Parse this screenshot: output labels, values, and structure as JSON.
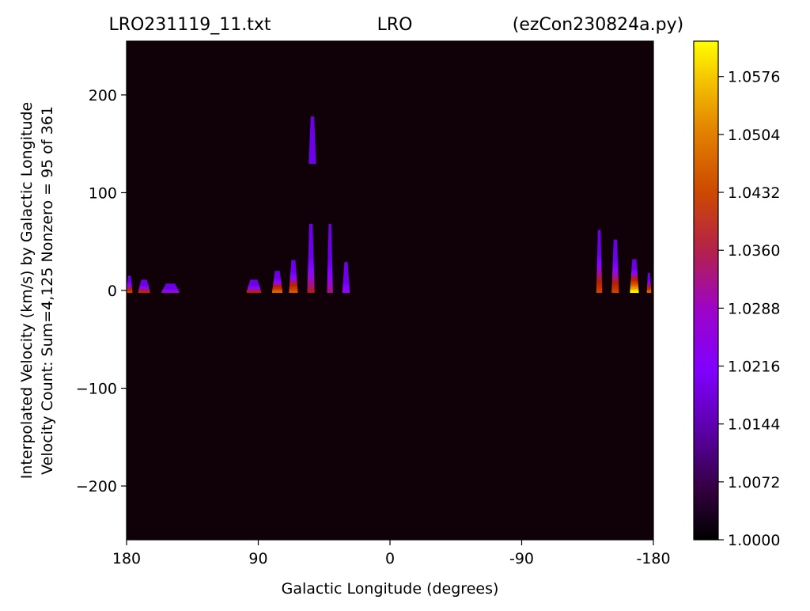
{
  "title": {
    "left": "LRO231119_11.txt",
    "center": "LRO",
    "right": "(ezCon230824a.py)"
  },
  "chart_data": {
    "type": "heatmap",
    "xlabel": "Galactic Longitude (degrees)",
    "ylabel_line1": "Interpolated Velocity (km/s) by Galactic Longitude",
    "ylabel_line2": "Velocity Count: Sum=4,125 Nonzero = 95 of 361",
    "xlim": [
      180,
      -180
    ],
    "ylim": [
      -255,
      255
    ],
    "x_ticks": [
      {
        "value": 180,
        "label": "180"
      },
      {
        "value": 90,
        "label": "90"
      },
      {
        "value": 0,
        "label": "0"
      },
      {
        "value": -90,
        "label": "-90"
      },
      {
        "value": -180,
        "label": "-180"
      }
    ],
    "y_ticks": [
      {
        "value": 200,
        "label": "200"
      },
      {
        "value": 100,
        "label": "100"
      },
      {
        "value": 0,
        "label": "0"
      },
      {
        "value": -100,
        "label": "−100"
      },
      {
        "value": -200,
        "label": "−200"
      }
    ],
    "colormap": "gnuplot",
    "colorbar": {
      "min": 1.0,
      "max": 1.062,
      "ticks": [
        {
          "value": 1.0,
          "label": "1.0000"
        },
        {
          "value": 1.0072,
          "label": "1.0072"
        },
        {
          "value": 1.0144,
          "label": "1.0144"
        },
        {
          "value": 1.0216,
          "label": "1.0216"
        },
        {
          "value": 1.0288,
          "label": "1.0288"
        },
        {
          "value": 1.036,
          "label": "1.0360"
        },
        {
          "value": 1.0432,
          "label": "1.0432"
        },
        {
          "value": 1.0504,
          "label": "1.0504"
        },
        {
          "value": 1.0576,
          "label": "1.0576"
        }
      ]
    },
    "background_value": 1.0,
    "emission_features": [
      {
        "lon": 178,
        "width": 4,
        "vmin": -2,
        "vmax": 15,
        "peak": 1.04
      },
      {
        "lon": 168,
        "width": 8,
        "vmin": -2,
        "vmax": 11,
        "peak": 1.034
      },
      {
        "lon": 150,
        "width": 12,
        "vmin": -2,
        "vmax": 7,
        "peak": 1.022
      },
      {
        "lon": 93,
        "width": 10,
        "vmin": -2,
        "vmax": 11,
        "peak": 1.032
      },
      {
        "lon": 77,
        "width": 7,
        "vmin": -2,
        "vmax": 20,
        "peak": 1.046
      },
      {
        "lon": 66,
        "width": 6,
        "vmin": -2,
        "vmax": 31,
        "peak": 1.044
      },
      {
        "lon": 54,
        "width": 5,
        "vmin": -2,
        "vmax": 68,
        "peak": 1.03
      },
      {
        "lon": 53,
        "width": 5,
        "vmin": 130,
        "vmax": 178,
        "peak": 1.01
      },
      {
        "lon": 41,
        "width": 4,
        "vmin": -2,
        "vmax": 68,
        "peak": 1.026
      },
      {
        "lon": 30,
        "width": 5,
        "vmin": -2,
        "vmax": 29,
        "peak": 1.02
      },
      {
        "lon": -143,
        "width": 4,
        "vmin": -2,
        "vmax": 62,
        "peak": 1.04
      },
      {
        "lon": -154,
        "width": 5,
        "vmin": -2,
        "vmax": 52,
        "peak": 1.04
      },
      {
        "lon": -167,
        "width": 6,
        "vmin": -2,
        "vmax": 32,
        "peak": 1.062
      },
      {
        "lon": -177,
        "width": 3,
        "vmin": -2,
        "vmax": 18,
        "peak": 1.046
      }
    ]
  }
}
